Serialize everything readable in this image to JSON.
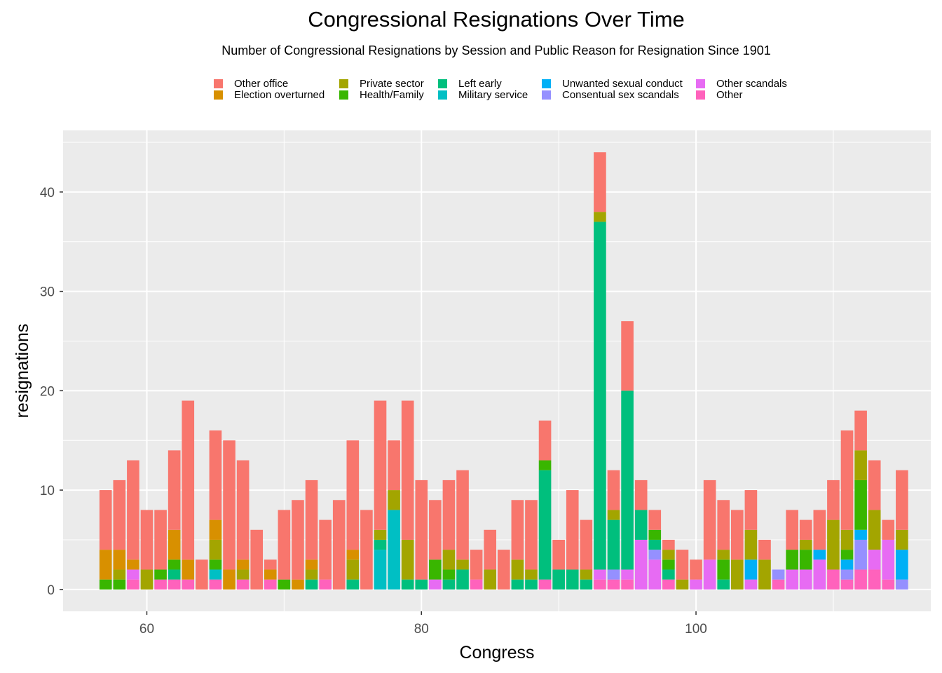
{
  "chart_data": {
    "type": "bar",
    "stacked": true,
    "title": "Congressional Resignations Over Time",
    "subtitle": "Number of Congressional Resignations by Session and Public Reason for Resignation Since 1901",
    "xlabel": "Congress",
    "ylabel": "resignations",
    "xlim": [
      53.9,
      117.1
    ],
    "ylim": [
      -2.2,
      46.2
    ],
    "x_ticks": [
      60,
      80,
      100
    ],
    "y_ticks": [
      0,
      10,
      20,
      30,
      40
    ],
    "grid": true,
    "legend_position": "top",
    "legend_order": [
      "Other office",
      "Election overturned",
      "Private sector",
      "Health/Family",
      "Left early",
      "Military service",
      "Unwanted sexual conduct",
      "Consentual sex scandals",
      "Other scandals",
      "Other"
    ],
    "series_colors": {
      "Other office": "#F8766D",
      "Election overturned": "#D89000",
      "Private sector": "#A3A500",
      "Health/Family": "#39B600",
      "Left early": "#00BF7D",
      "Military service": "#00BFC4",
      "Unwanted sexual conduct": "#00B0F6",
      "Consentual sex scandals": "#9590FF",
      "Other scandals": "#E76BF3",
      "Other": "#FF62BC"
    },
    "stack_order_bottom_to_top": [
      "Other",
      "Other scandals",
      "Consentual sex scandals",
      "Unwanted sexual conduct",
      "Military service",
      "Left early",
      "Health/Family",
      "Private sector",
      "Election overturned",
      "Other office"
    ],
    "bars": [
      {
        "congress": 57,
        "Other office": 6,
        "Election overturned": 3,
        "Health/Family": 1
      },
      {
        "congress": 58,
        "Other office": 7,
        "Election overturned": 2,
        "Private sector": 1,
        "Health/Family": 1
      },
      {
        "congress": 59,
        "Other office": 10,
        "Election overturned": 1,
        "Other scandals": 1,
        "Other": 1
      },
      {
        "congress": 60,
        "Other office": 6,
        "Private sector": 2
      },
      {
        "congress": 61,
        "Other office": 6,
        "Health/Family": 1,
        "Other": 1
      },
      {
        "congress": 62,
        "Other office": 8,
        "Election overturned": 3,
        "Health/Family": 1,
        "Left early": 1,
        "Other": 1
      },
      {
        "congress": 63,
        "Other office": 16,
        "Election overturned": 2,
        "Other": 1
      },
      {
        "congress": 64,
        "Other office": 3
      },
      {
        "congress": 65,
        "Other office": 9,
        "Election overturned": 2,
        "Private sector": 2,
        "Health/Family": 1,
        "Military service": 1,
        "Other": 1
      },
      {
        "congress": 66,
        "Other office": 13,
        "Election overturned": 2
      },
      {
        "congress": 67,
        "Other office": 10,
        "Election overturned": 1,
        "Private sector": 1,
        "Other": 1
      },
      {
        "congress": 68,
        "Other office": 6
      },
      {
        "congress": 69,
        "Other office": 1,
        "Election overturned": 1,
        "Other": 1
      },
      {
        "congress": 70,
        "Other office": 7,
        "Health/Family": 1
      },
      {
        "congress": 71,
        "Other office": 8,
        "Election overturned": 1
      },
      {
        "congress": 72,
        "Other office": 8,
        "Election overturned": 1,
        "Private sector": 1,
        "Left early": 1
      },
      {
        "congress": 73,
        "Other office": 6,
        "Other": 1
      },
      {
        "congress": 74,
        "Other office": 9
      },
      {
        "congress": 75,
        "Other office": 11,
        "Election overturned": 1,
        "Private sector": 2,
        "Left early": 1
      },
      {
        "congress": 76,
        "Other office": 8
      },
      {
        "congress": 77,
        "Other office": 13,
        "Private sector": 1,
        "Left early": 1,
        "Military service": 4
      },
      {
        "congress": 78,
        "Other office": 5,
        "Private sector": 2,
        "Military service": 8
      },
      {
        "congress": 79,
        "Other office": 14,
        "Private sector": 4,
        "Left early": 1
      },
      {
        "congress": 80,
        "Other office": 10,
        "Left early": 1
      },
      {
        "congress": 81,
        "Other office": 6,
        "Health/Family": 2,
        "Other scandals": 1
      },
      {
        "congress": 82,
        "Other office": 7,
        "Private sector": 2,
        "Health/Family": 1,
        "Left early": 1
      },
      {
        "congress": 83,
        "Other office": 9,
        "Private sector": 1,
        "Left early": 2
      },
      {
        "congress": 84,
        "Other office": 3,
        "Other": 1
      },
      {
        "congress": 85,
        "Other office": 4,
        "Private sector": 2
      },
      {
        "congress": 86,
        "Other office": 4
      },
      {
        "congress": 87,
        "Other office": 6,
        "Private sector": 2,
        "Left early": 1
      },
      {
        "congress": 88,
        "Other office": 7,
        "Private sector": 1,
        "Left early": 1
      },
      {
        "congress": 89,
        "Other office": 4,
        "Health/Family": 1,
        "Left early": 11,
        "Other": 1
      },
      {
        "congress": 90,
        "Other office": 3,
        "Left early": 2
      },
      {
        "congress": 91,
        "Other office": 8,
        "Left early": 2
      },
      {
        "congress": 92,
        "Other office": 5,
        "Private sector": 1,
        "Left early": 1
      },
      {
        "congress": 93,
        "Other office": 6,
        "Private sector": 1,
        "Left early": 35,
        "Other scandals": 1,
        "Other": 1
      },
      {
        "congress": 94,
        "Other office": 4,
        "Private sector": 1,
        "Left early": 5,
        "Consentual sex scandals": 1,
        "Other": 1
      },
      {
        "congress": 95,
        "Other office": 7,
        "Left early": 18,
        "Other scandals": 1,
        "Other": 1
      },
      {
        "congress": 96,
        "Other office": 3,
        "Left early": 3,
        "Other scandals": 5
      },
      {
        "congress": 97,
        "Other office": 2,
        "Health/Family": 1,
        "Left early": 1,
        "Consentual sex scandals": 1,
        "Other scandals": 3
      },
      {
        "congress": 98,
        "Other office": 1,
        "Private sector": 1,
        "Health/Family": 1,
        "Left early": 1,
        "Other": 1
      },
      {
        "congress": 99,
        "Other office": 3,
        "Private sector": 1
      },
      {
        "congress": 100,
        "Other office": 2,
        "Other scandals": 1
      },
      {
        "congress": 101,
        "Other office": 8,
        "Other scandals": 3
      },
      {
        "congress": 102,
        "Other office": 5,
        "Private sector": 1,
        "Health/Family": 2,
        "Left early": 1
      },
      {
        "congress": 103,
        "Other office": 5,
        "Private sector": 3
      },
      {
        "congress": 104,
        "Other office": 4,
        "Private sector": 3,
        "Unwanted sexual conduct": 2,
        "Other scandals": 1
      },
      {
        "congress": 105,
        "Other office": 2,
        "Private sector": 3
      },
      {
        "congress": 106,
        "Consentual sex scandals": 1,
        "Other": 1
      },
      {
        "congress": 107,
        "Other office": 4,
        "Health/Family": 2,
        "Other scandals": 2
      },
      {
        "congress": 108,
        "Other office": 2,
        "Private sector": 1,
        "Health/Family": 2,
        "Other scandals": 2
      },
      {
        "congress": 109,
        "Other office": 4,
        "Unwanted sexual conduct": 1,
        "Other scandals": 3
      },
      {
        "congress": 110,
        "Other office": 4,
        "Private sector": 5,
        "Other": 2
      },
      {
        "congress": 111,
        "Other office": 10,
        "Private sector": 2,
        "Health/Family": 1,
        "Unwanted sexual conduct": 1,
        "Consentual sex scandals": 1,
        "Other": 1
      },
      {
        "congress": 112,
        "Other office": 4,
        "Private sector": 3,
        "Health/Family": 5,
        "Unwanted sexual conduct": 1,
        "Consentual sex scandals": 3,
        "Other": 2
      },
      {
        "congress": 113,
        "Other office": 5,
        "Private sector": 4,
        "Other scandals": 2,
        "Other": 2
      },
      {
        "congress": 114,
        "Other office": 2,
        "Other scandals": 4,
        "Other": 1
      },
      {
        "congress": 115,
        "Other office": 6,
        "Private sector": 2,
        "Unwanted sexual conduct": 3,
        "Consentual sex scandals": 1
      }
    ]
  }
}
